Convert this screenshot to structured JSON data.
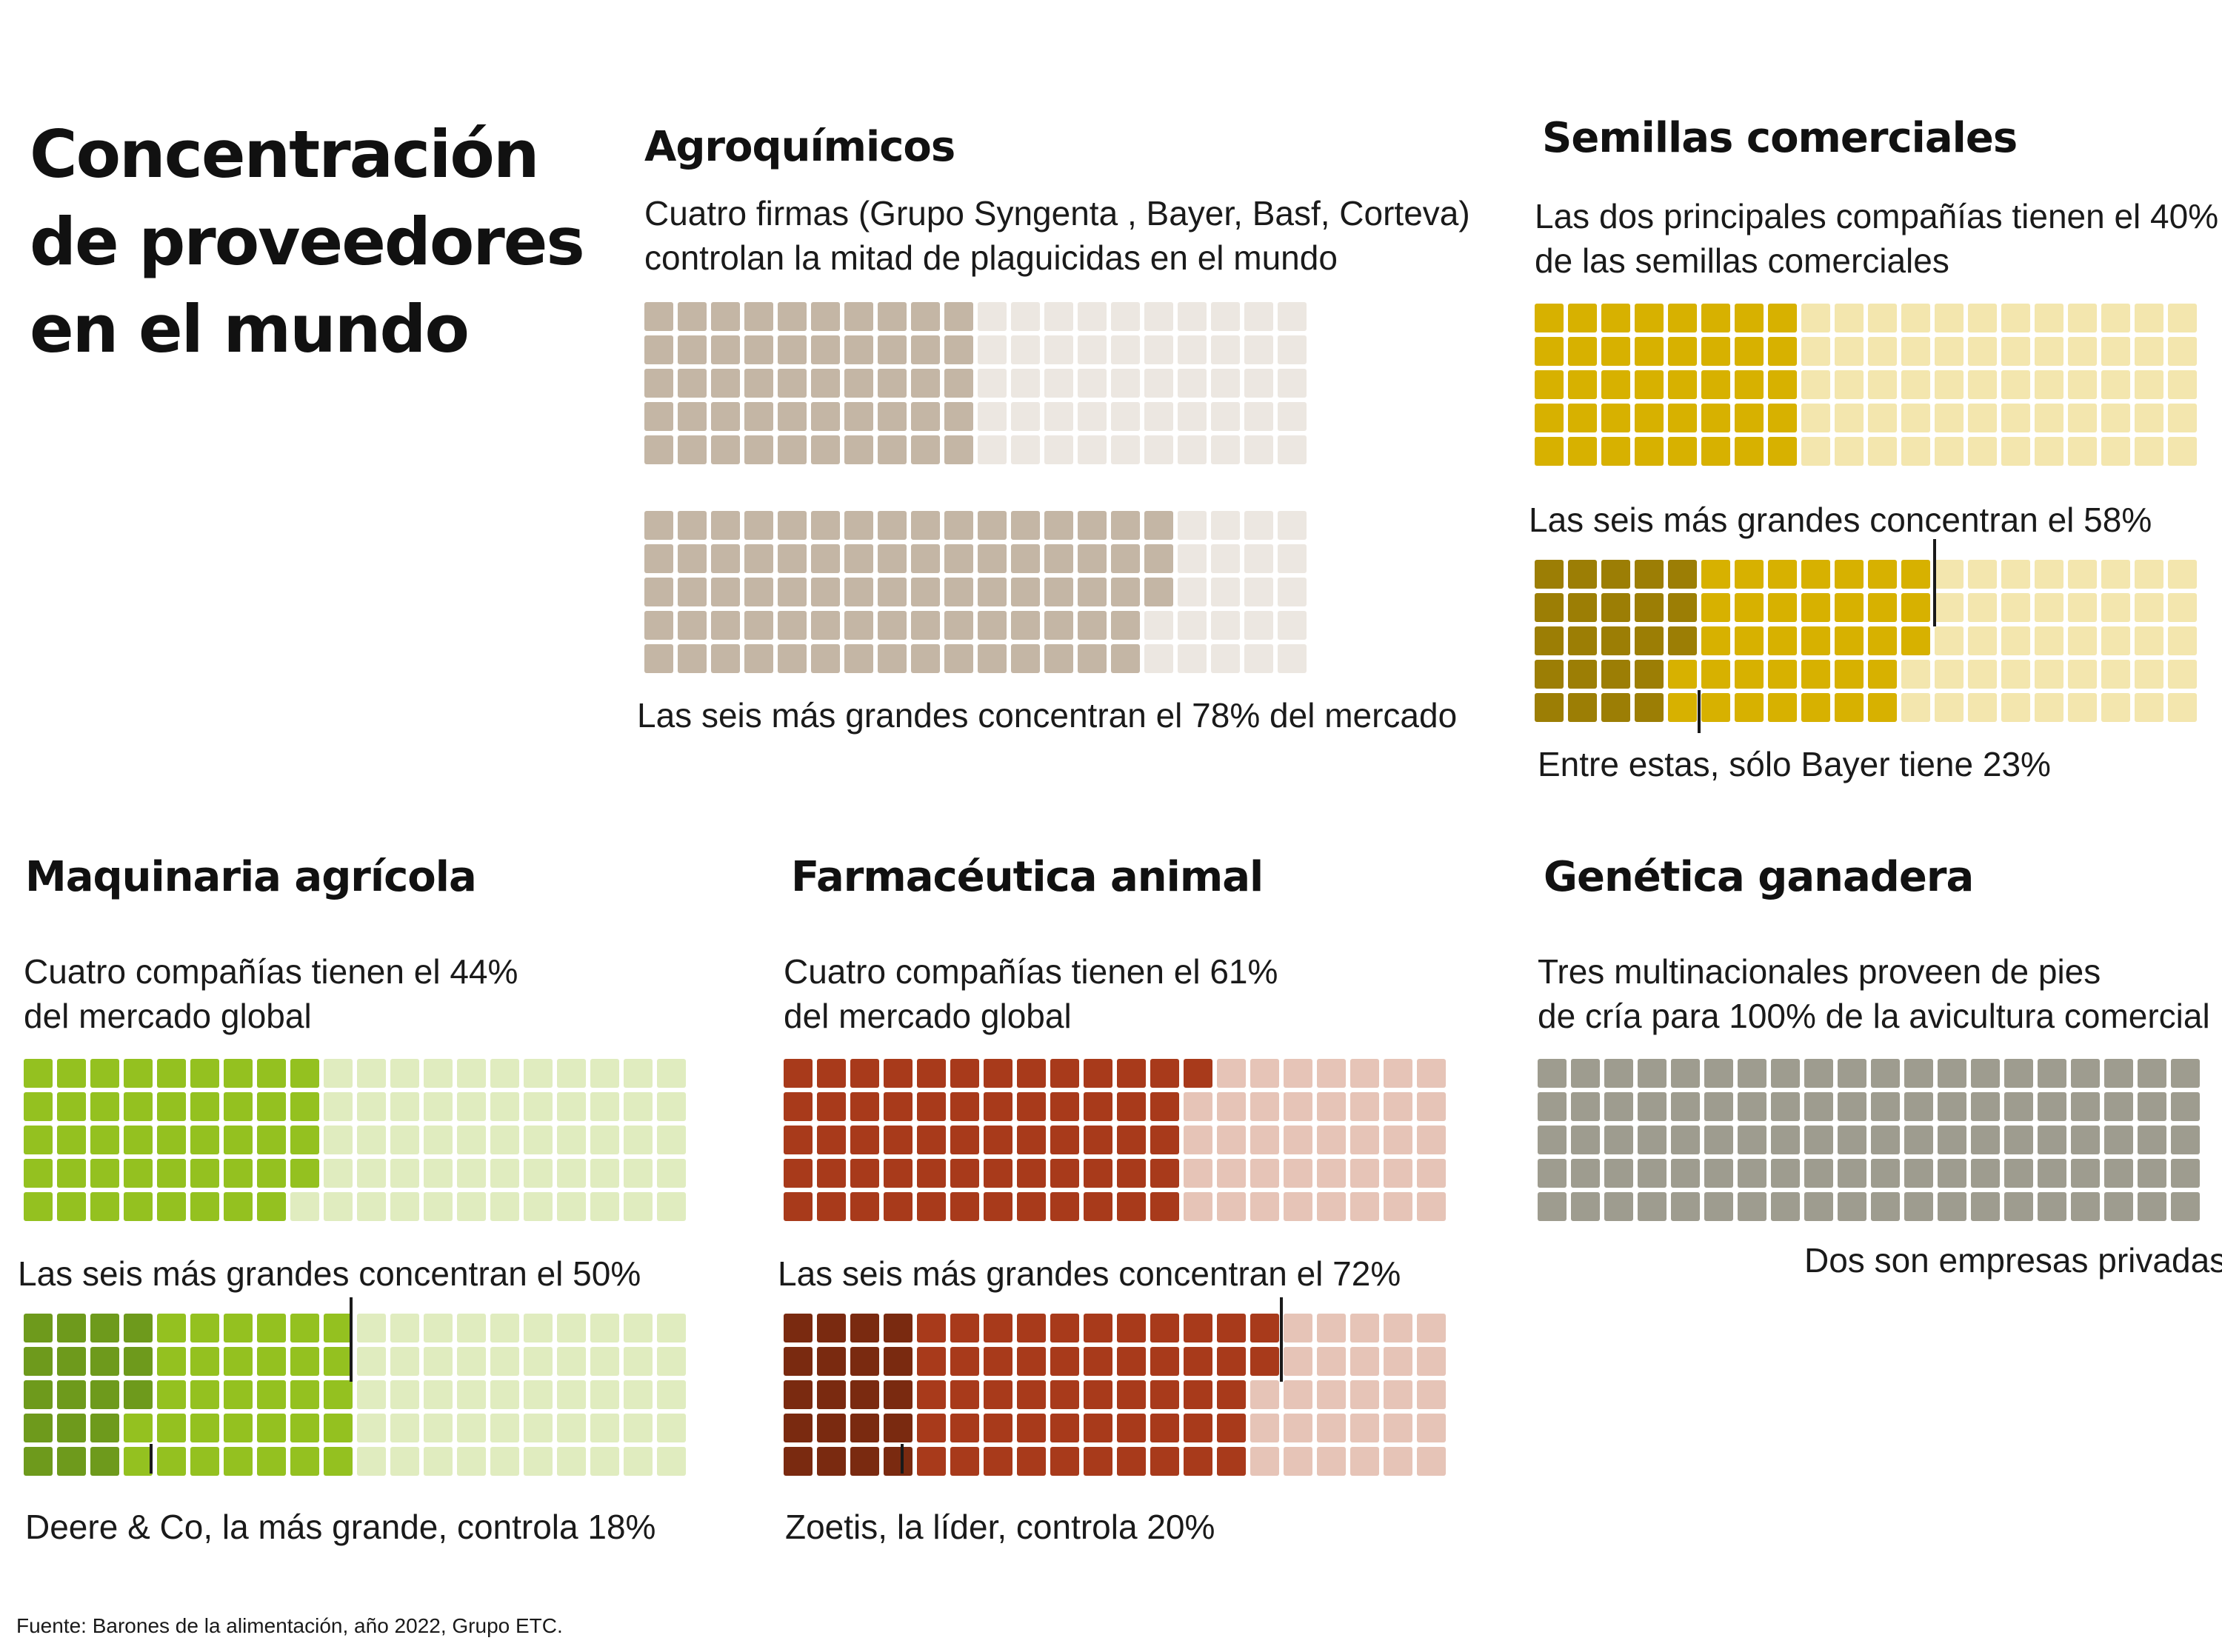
{
  "title": [
    "Concentración",
    "de proveedores",
    "en el mundo"
  ],
  "source": "Fuente: Barones de la alimentación, año 2022, Grupo ETC.",
  "sections": {
    "agro": {
      "title": "Agroquímicos",
      "desc": [
        "Cuatro firmas  (Grupo Syngenta , Bayer, Basf, Corteva)",
        "controlan la mitad de plaguicidas en el mundo"
      ],
      "label_six": "Las seis más grandes concentran el 78% del mercado"
    },
    "semillas": {
      "title": "Semillas comerciales",
      "desc": [
        "Las dos principales compañías tienen el 40%",
        "de las semillas comerciales"
      ],
      "label_six": "Las seis más grandes concentran el 58%",
      "label_leader": "Entre estas, sólo Bayer tiene 23%"
    },
    "maquinaria": {
      "title": "Maquinaria agrícola",
      "desc": [
        "Cuatro compañías tienen el 44%",
        "del mercado global"
      ],
      "label_six": "Las seis más grandes concentran el 50%",
      "label_leader": "Deere & Co, la más grande, controla 18%"
    },
    "farma": {
      "title": "Farmacéutica animal",
      "desc": [
        "Cuatro compañías tienen el 61%",
        "del mercado global"
      ],
      "label_six": "Las seis más grandes concentran el 72%",
      "label_leader": "Zoetis, la líder, controla 20%"
    },
    "genetica": {
      "title": "Genética ganadera",
      "desc": [
        "Tres multinacionales proveen de pies",
        "de cría para 100% de la avicultura comercial"
      ],
      "label_note": "Dos son empresas privadas"
    }
  },
  "chart_data": [
    {
      "type": "waffle",
      "id": "agro-top",
      "rows": 5,
      "cols": 20,
      "total": 100,
      "values": [
        50
      ],
      "colors": [
        "#c4b6a5"
      ],
      "background": "#ece7e1"
    },
    {
      "type": "waffle",
      "id": "agro-bottom",
      "rows": 5,
      "cols": 20,
      "total": 100,
      "values": [
        78
      ],
      "colors": [
        "#c4b6a5"
      ],
      "background": "#ece7e1"
    },
    {
      "type": "waffle",
      "id": "semillas-top",
      "rows": 5,
      "cols": 20,
      "total": 100,
      "values": [
        40
      ],
      "colors": [
        "#d7b100"
      ],
      "background": "#f3e6ae"
    },
    {
      "type": "waffle",
      "id": "semillas-bottom",
      "rows": 5,
      "cols": 20,
      "total": 100,
      "values": [
        23,
        35
      ],
      "colors": [
        "#9c7e05",
        "#d7b100"
      ],
      "background": "#f3e6ae"
    },
    {
      "type": "waffle",
      "id": "maquinaria-top",
      "rows": 5,
      "cols": 20,
      "total": 100,
      "values": [
        44
      ],
      "colors": [
        "#94c120"
      ],
      "background": "#e0ecbf"
    },
    {
      "type": "waffle",
      "id": "maquinaria-bottom",
      "rows": 5,
      "cols": 20,
      "total": 100,
      "values": [
        18,
        32
      ],
      "colors": [
        "#6e9a1c",
        "#94c120"
      ],
      "background": "#e0ecbf"
    },
    {
      "type": "waffle",
      "id": "farma-top",
      "rows": 5,
      "cols": 20,
      "total": 100,
      "values": [
        61
      ],
      "colors": [
        "#a83a1b"
      ],
      "background": "#e6c4b7"
    },
    {
      "type": "waffle",
      "id": "farma-bottom",
      "rows": 5,
      "cols": 20,
      "total": 100,
      "values": [
        20,
        52
      ],
      "colors": [
        "#7a2a10",
        "#a83a1b"
      ],
      "background": "#e6c4b7"
    },
    {
      "type": "waffle",
      "id": "genetica",
      "rows": 5,
      "cols": 20,
      "total": 100,
      "values": [
        100
      ],
      "colors": [
        "#9e9c8f"
      ],
      "background": "#9e9c8f"
    }
  ]
}
